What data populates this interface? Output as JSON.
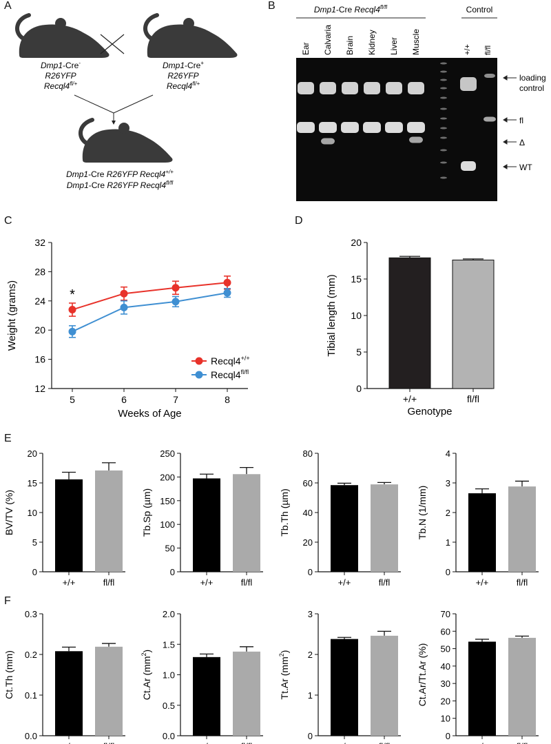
{
  "panels": {
    "A": {
      "letter": "A",
      "parent_left": {
        "line1_pre": "Dmp1",
        "line1_post": "-Cre",
        "line1_sup": "-",
        "line2": "R26YFP",
        "line3": "Recql4",
        "line3_sup": "fl/+"
      },
      "parent_right": {
        "line1_pre": "Dmp1",
        "line1_post": "-Cre",
        "line1_sup": "+",
        "line2": "R26YFP",
        "line3": "Recql4",
        "line3_sup": "fl/+"
      },
      "offspring": {
        "row1_a": "Dmp1",
        "row1_b": "-Cre ",
        "row1_c": "R26YFP Recql4",
        "row1_sup": "+/+",
        "row2_a": "Dmp1",
        "row2_b": "-Cre ",
        "row2_c": "R26YFP Recql4",
        "row2_sup": "fl/fl"
      },
      "cross_symbol": "×"
    },
    "B": {
      "letter": "B",
      "group_title_a": "Dmp1",
      "group_title_b": "-Cre ",
      "group_title_c": "Recql4",
      "group_title_sup": "fl/fl",
      "control_title": "Control",
      "lanes": [
        "Ear",
        "Calvaria",
        "Brain",
        "Kidney",
        "Liver",
        "Muscle"
      ],
      "control_lanes": [
        "+/+",
        "fl/fl"
      ],
      "band_labels": [
        "loading",
        "control",
        "fl",
        "Δ",
        "WT"
      ]
    },
    "C": {
      "letter": "C"
    },
    "D": {
      "letter": "D"
    },
    "E": {
      "letter": "E"
    },
    "F": {
      "letter": "F"
    }
  },
  "chart_data": [
    {
      "id": "C",
      "type": "line",
      "x": [
        5,
        6,
        7,
        8
      ],
      "xticks": [
        "5",
        "6",
        "7",
        "8"
      ],
      "ylim": [
        12,
        32
      ],
      "yticks": [
        "12",
        "16",
        "20",
        "24",
        "28",
        "32"
      ],
      "xlabel": "Weeks of Age",
      "ylabel": "Weight (grams)",
      "legend_position": "bottom-right",
      "annotation": "*",
      "series": [
        {
          "name": "Recql4",
          "sup": "+/+",
          "color": "#e8322a",
          "values": [
            22.8,
            25.0,
            25.8,
            26.5
          ],
          "err": [
            0.9,
            0.9,
            0.9,
            0.9
          ]
        },
        {
          "name": "Recql4",
          "sup": "fl/fl",
          "color": "#3f8fd2",
          "values": [
            19.8,
            23.1,
            23.9,
            25.1
          ],
          "err": [
            0.8,
            0.9,
            0.7,
            0.6
          ]
        }
      ]
    },
    {
      "id": "D",
      "type": "bar",
      "categories": [
        "+/+",
        "fl/fl"
      ],
      "values": [
        17.9,
        17.6
      ],
      "err": [
        0.2,
        0.15
      ],
      "ylim": [
        0,
        20
      ],
      "yticks": [
        "0",
        "5",
        "10",
        "15",
        "20"
      ],
      "ylabel": "Tibial length (mm)",
      "xlabel": "Genotype",
      "colors": [
        "#231f20",
        "#b3b3b3"
      ]
    },
    {
      "id": "E1",
      "type": "bar",
      "categories": [
        "+/+",
        "fl/fl"
      ],
      "values": [
        15.6,
        17.1
      ],
      "err": [
        1.2,
        1.3
      ],
      "ylim": [
        0,
        20
      ],
      "yticks": [
        "0",
        "5",
        "10",
        "15",
        "20"
      ],
      "ylabel": "BV/TV (%)",
      "colors": [
        "#000000",
        "#aaaaaa"
      ]
    },
    {
      "id": "E2",
      "type": "bar",
      "categories": [
        "+/+",
        "fl/fl"
      ],
      "values": [
        197,
        206
      ],
      "err": [
        9,
        14
      ],
      "ylim": [
        0,
        250
      ],
      "yticks": [
        "0",
        "50",
        "100",
        "150",
        "200",
        "250"
      ],
      "ylabel": "Tb.Sp (µm)",
      "colors": [
        "#000000",
        "#aaaaaa"
      ]
    },
    {
      "id": "E3",
      "type": "bar",
      "categories": [
        "+/+",
        "fl/fl"
      ],
      "values": [
        58.5,
        59.0
      ],
      "err": [
        1.3,
        1.3
      ],
      "ylim": [
        0,
        80
      ],
      "yticks": [
        "0",
        "20",
        "40",
        "60",
        "80"
      ],
      "ylabel": "Tb.Th (µm)",
      "colors": [
        "#000000",
        "#aaaaaa"
      ]
    },
    {
      "id": "E4",
      "type": "bar",
      "categories": [
        "+/+",
        "fl/fl"
      ],
      "values": [
        2.65,
        2.88
      ],
      "err": [
        0.15,
        0.18
      ],
      "ylim": [
        0,
        4
      ],
      "yticks": [
        "0",
        "1",
        "2",
        "3",
        "4"
      ],
      "ylabel": "Tb.N (1/mm)",
      "colors": [
        "#000000",
        "#aaaaaa"
      ]
    },
    {
      "id": "F1",
      "type": "bar",
      "categories": [
        "+/+",
        "fl/fl"
      ],
      "values": [
        0.208,
        0.219
      ],
      "err": [
        0.01,
        0.008
      ],
      "ylim": [
        0,
        0.3
      ],
      "yticks": [
        "0.0",
        "0.1",
        "0.2",
        "0.3"
      ],
      "ylabel": "Ct.Th (mm)",
      "colors": [
        "#000000",
        "#aaaaaa"
      ]
    },
    {
      "id": "F2",
      "type": "bar",
      "categories": [
        "+/+",
        "fl/fl"
      ],
      "values": [
        1.29,
        1.38
      ],
      "err": [
        0.05,
        0.08
      ],
      "ylim": [
        0,
        2.0
      ],
      "yticks": [
        "0.0",
        "0.5",
        "1.0",
        "1.5",
        "2.0"
      ],
      "ylabel": "Ct.Ar (mm",
      "ylabel_sup": "2",
      "ylabel_end": ")",
      "colors": [
        "#000000",
        "#aaaaaa"
      ]
    },
    {
      "id": "F3",
      "type": "bar",
      "categories": [
        "+/+",
        "fl/fl"
      ],
      "values": [
        2.38,
        2.46
      ],
      "err": [
        0.04,
        0.11
      ],
      "ylim": [
        0,
        3
      ],
      "yticks": [
        "0",
        "1",
        "2",
        "3"
      ],
      "ylabel": "Tt.Ar (mm",
      "ylabel_sup": "2",
      "ylabel_end": ")",
      "colors": [
        "#000000",
        "#aaaaaa"
      ]
    },
    {
      "id": "F4",
      "type": "bar",
      "categories": [
        "+/+",
        "fl/fl"
      ],
      "values": [
        54.0,
        56.2
      ],
      "err": [
        1.4,
        1.0
      ],
      "ylim": [
        0,
        70
      ],
      "yticks": [
        "0",
        "10",
        "20",
        "30",
        "40",
        "50",
        "60",
        "70"
      ],
      "ylabel": "Ct.Ar/Tt.Ar (%)",
      "colors": [
        "#000000",
        "#aaaaaa"
      ]
    }
  ]
}
